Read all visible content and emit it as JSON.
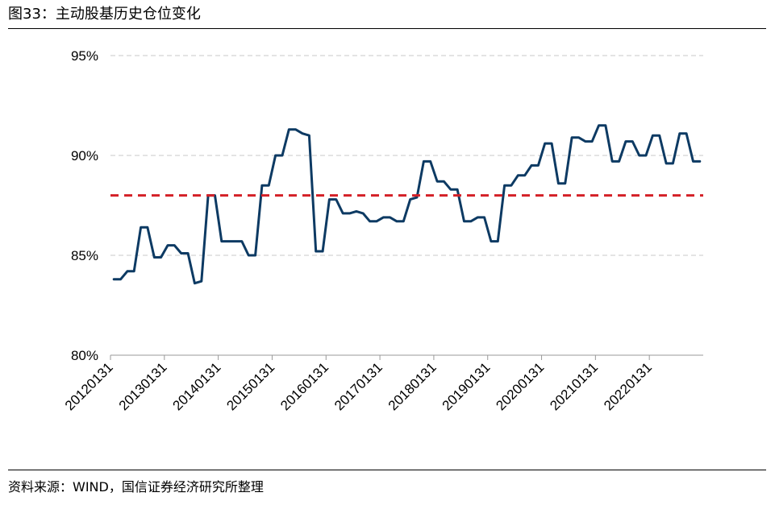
{
  "figure_title": "图33：主动股基历史仓位变化",
  "source_note": "资料来源：WIND，国信证券经济研究所整理",
  "colors": {
    "series": "#0d3a63",
    "reference": "#d42027",
    "grid": "#c8c8c8",
    "axis": "#999999"
  },
  "chart_data": {
    "type": "line",
    "title": "",
    "xlabel": "",
    "ylabel": "",
    "ylim": [
      0.8,
      0.95
    ],
    "yticks": [
      0.8,
      0.85,
      0.9,
      0.95
    ],
    "ytick_labels": [
      "80%",
      "85%",
      "90%",
      "95%"
    ],
    "xtick_labels": [
      "20120131",
      "20130131",
      "20140131",
      "20150131",
      "20160131",
      "20170131",
      "20180131",
      "20190131",
      "20200131",
      "20210131",
      "20220131"
    ],
    "grid": true,
    "legend": "none",
    "series": [
      {
        "values": [
          0.838,
          0.838,
          0.842,
          0.842,
          0.864,
          0.864,
          0.849,
          0.849,
          0.855,
          0.855,
          0.851,
          0.851,
          0.836,
          0.837,
          0.88,
          0.88,
          0.857,
          0.857,
          0.857,
          0.857,
          0.85,
          0.85,
          0.885,
          0.885,
          0.9,
          0.9,
          0.913,
          0.913,
          0.911,
          0.91,
          0.852,
          0.852,
          0.878,
          0.878,
          0.871,
          0.871,
          0.872,
          0.871,
          0.867,
          0.867,
          0.869,
          0.869,
          0.867,
          0.867,
          0.878,
          0.879,
          0.897,
          0.897,
          0.887,
          0.887,
          0.883,
          0.883,
          0.867,
          0.867,
          0.869,
          0.869,
          0.857,
          0.857,
          0.885,
          0.885,
          0.89,
          0.89,
          0.895,
          0.895,
          0.906,
          0.906,
          0.886,
          0.886,
          0.909,
          0.909,
          0.907,
          0.907,
          0.915,
          0.915,
          0.897,
          0.897,
          0.907,
          0.907,
          0.9,
          0.9,
          0.91,
          0.91,
          0.896,
          0.896,
          0.911,
          0.911,
          0.897,
          0.897
        ]
      }
    ],
    "reference_line": {
      "value": 0.88,
      "style": "dashed"
    }
  }
}
